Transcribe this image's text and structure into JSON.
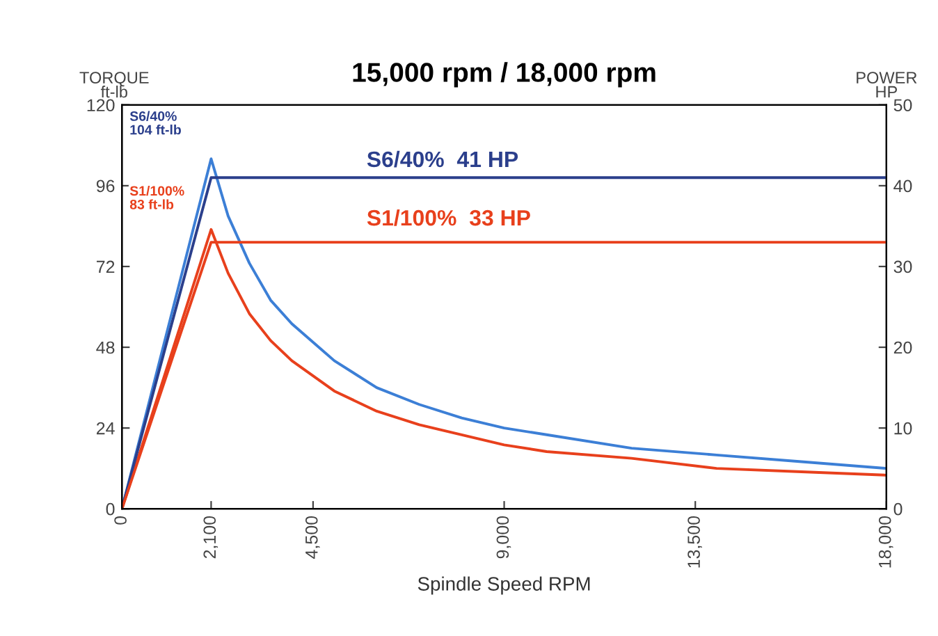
{
  "chart_data": {
    "type": "line",
    "title": "15,000 rpm / 18,000 rpm",
    "xlabel": "Spindle Speed RPM",
    "ylabel": "TORQUE\nft-lb",
    "y2label": "POWER\nHP",
    "xlim": [
      0,
      18000
    ],
    "xticks": [
      0,
      {
        "value": 2100,
        "label": "2,100"
      },
      {
        "value": 4500,
        "label": "4,500"
      },
      {
        "value": 9000,
        "label": "9,000"
      },
      {
        "value": 13500,
        "label": "13,500"
      },
      {
        "value": 18000,
        "label": "18,000"
      }
    ],
    "ylim": [
      0,
      120
    ],
    "yticks": [
      0,
      24,
      48,
      72,
      96,
      120
    ],
    "y2lim": [
      0,
      50
    ],
    "y2ticks": [
      0,
      10,
      20,
      30,
      40,
      50
    ],
    "grid": false,
    "marker": "none",
    "line_style": "solid",
    "series": [
      {
        "color": "#3c7fd6",
        "x": [
          0,
          2100,
          2500,
          3000,
          3500,
          4000,
          5000,
          6000,
          7000,
          8000,
          9000,
          10000,
          12000,
          14000,
          16000,
          18000
        ],
        "values": [
          0,
          104,
          87,
          73,
          62,
          55,
          44,
          36,
          31,
          27,
          24,
          22,
          18,
          16,
          14,
          12
        ]
      },
      {
        "color": "#e8401c",
        "x": [
          0,
          2100,
          2500,
          3000,
          3500,
          4000,
          5000,
          6000,
          7000,
          8000,
          9000,
          10000,
          12000,
          14000,
          16000,
          18000
        ],
        "values": [
          0,
          83,
          70,
          58,
          50,
          44,
          35,
          29,
          25,
          22,
          19,
          17,
          15,
          12,
          11,
          10
        ]
      },
      {
        "color": "#2b3f8c",
        "axis": "y2",
        "x": [
          0,
          2100,
          18000
        ],
        "values": [
          0,
          41,
          41
        ]
      },
      {
        "color": "#e8401c",
        "axis": "y2",
        "x": [
          0,
          2100,
          18000
        ],
        "values": [
          0,
          33,
          33
        ]
      }
    ],
    "annotations": [
      "S6/40%\n104 ft-lb",
      "S1/100%\n83 ft-lb",
      "S6/40%  41 HP",
      "S1/100%  33 HP"
    ]
  }
}
